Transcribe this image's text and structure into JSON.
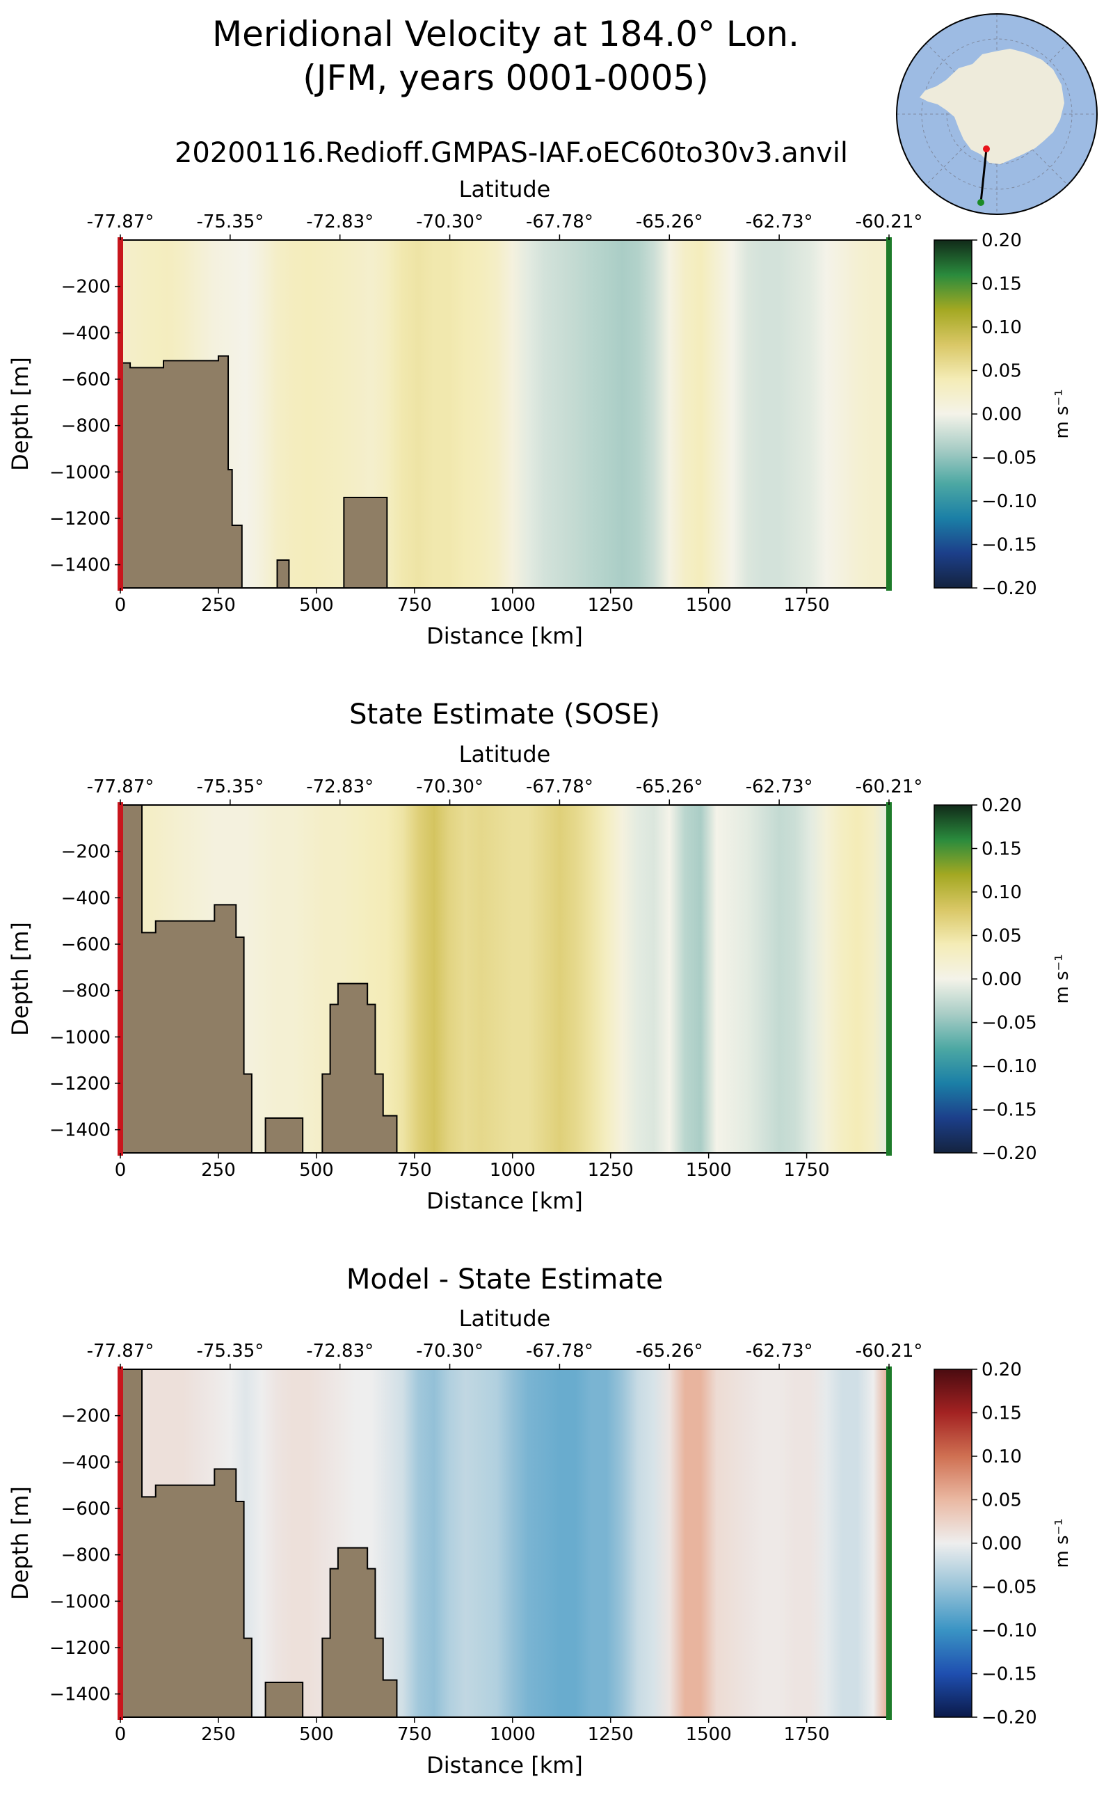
{
  "figure": {
    "title_line1": "Meridional Velocity at 184.0° Lon.",
    "title_line2": "(JFM, years 0001-0005)",
    "run_name": "20200116.Redioff.GMPAS-IAF.oEC60to30v3.anvil"
  },
  "inset_map": {
    "description_icon": "antarctica-polar-map-icon",
    "colors": {
      "ocean": "#9DBBE3",
      "land": "#EEEBDB",
      "section_line": "#000000",
      "start_dot": "#E8141B",
      "end_dot": "#1B8A26"
    }
  },
  "colors": {
    "bathymetry": "#8F7E65",
    "start_marker": "#C8161D",
    "end_marker": "#1E7B2A",
    "velocity_cmap": [
      "#14233f",
      "#1c3f8a",
      "#1b7fa6",
      "#4da8a3",
      "#a9cdc6",
      "#f4f3e9",
      "#f4ecb6",
      "#d9c766",
      "#a3a822",
      "#2a8b3d",
      "#112a19"
    ],
    "diff_cmap": [
      "#0b1a4a",
      "#1f4fb0",
      "#3a94c4",
      "#98c3d8",
      "#eeeeee",
      "#eab8a2",
      "#cf7052",
      "#a32222",
      "#4a0b10"
    ]
  },
  "chart_data": [
    {
      "type": "heatmap",
      "name": "model",
      "title": "",
      "top_axis_label": "Latitude",
      "xlabel": "Distance [km]",
      "ylabel": "Depth [m]",
      "xlim": [
        0,
        1960
      ],
      "ylim": [
        -1500,
        0
      ],
      "x_ticks": [
        0,
        250,
        500,
        750,
        1000,
        1250,
        1500,
        1750
      ],
      "x_tick_labels": [
        "0",
        "250",
        "500",
        "750",
        "1000",
        "1250",
        "1500",
        "1750"
      ],
      "y_ticks": [
        -200,
        -400,
        -600,
        -800,
        -1000,
        -1200,
        -1400
      ],
      "y_tick_labels": [
        "−200",
        "−400",
        "−600",
        "−800",
        "−1000",
        "−1200",
        "−1400"
      ],
      "lat_tick_positions_km": [
        0,
        280,
        560,
        840,
        1120,
        1400,
        1680,
        1960
      ],
      "lat_tick_labels": [
        "-77.87°",
        "-75.35°",
        "-72.83°",
        "-70.30°",
        "-67.78°",
        "-65.26°",
        "-62.73°",
        "-60.21°"
      ],
      "colorbar": {
        "label": "m s⁻¹",
        "vmin": -0.2,
        "vmax": 0.2,
        "ticks": [
          0.2,
          0.15,
          0.1,
          0.05,
          0.0,
          -0.05,
          -0.1,
          -0.15,
          -0.2
        ],
        "tick_labels": [
          "0.20",
          "0.15",
          "0.10",
          "0.05",
          "0.00",
          "−0.05",
          "−0.10",
          "−0.15",
          "−0.20"
        ]
      },
      "bathymetry": [
        [
          0,
          -530
        ],
        [
          25,
          -530
        ],
        [
          25,
          -550
        ],
        [
          110,
          -550
        ],
        [
          110,
          -520
        ],
        [
          250,
          -520
        ],
        [
          250,
          -500
        ],
        [
          275,
          -500
        ],
        [
          275,
          -990
        ],
        [
          285,
          -990
        ],
        [
          285,
          -1230
        ],
        [
          310,
          -1230
        ],
        [
          310,
          -1500
        ],
        [
          400,
          -1500
        ],
        [
          400,
          -1380
        ],
        [
          430,
          -1380
        ],
        [
          430,
          -1500
        ],
        [
          570,
          -1500
        ],
        [
          570,
          -1110
        ],
        [
          680,
          -1110
        ],
        [
          680,
          -1500
        ]
      ],
      "field_profile_km": [
        0,
        40,
        80,
        120,
        160,
        200,
        240,
        280,
        320,
        360,
        400,
        440,
        480,
        520,
        560,
        600,
        640,
        680,
        720,
        760,
        800,
        840,
        880,
        920,
        960,
        1000,
        1040,
        1080,
        1120,
        1160,
        1200,
        1240,
        1280,
        1320,
        1360,
        1400,
        1440,
        1480,
        1520,
        1560,
        1600,
        1640,
        1680,
        1720,
        1760,
        1800,
        1840,
        1880,
        1920,
        1960
      ],
      "field_profile_ms": [
        0.01,
        0.012,
        0.014,
        0.015,
        0.012,
        0.008,
        0.004,
        0.002,
        0.0,
        0.005,
        0.012,
        0.015,
        0.016,
        0.015,
        0.014,
        0.012,
        0.01,
        0.014,
        0.02,
        0.022,
        0.02,
        0.02,
        0.018,
        0.016,
        0.012,
        0.004,
        -0.004,
        -0.008,
        -0.01,
        -0.012,
        -0.014,
        -0.016,
        -0.018,
        -0.016,
        -0.01,
        0.002,
        0.012,
        0.016,
        0.008,
        0.0,
        -0.006,
        -0.008,
        -0.008,
        -0.006,
        -0.004,
        0.0,
        0.004,
        0.008,
        0.01,
        0.01
      ]
    },
    {
      "type": "heatmap",
      "name": "sose",
      "title": "State Estimate (SOSE)",
      "top_axis_label": "Latitude",
      "xlabel": "Distance [km]",
      "ylabel": "Depth [m]",
      "xlim": [
        0,
        1960
      ],
      "ylim": [
        -1500,
        0
      ],
      "x_ticks": [
        0,
        250,
        500,
        750,
        1000,
        1250,
        1500,
        1750
      ],
      "x_tick_labels": [
        "0",
        "250",
        "500",
        "750",
        "1000",
        "1250",
        "1500",
        "1750"
      ],
      "y_ticks": [
        -200,
        -400,
        -600,
        -800,
        -1000,
        -1200,
        -1400
      ],
      "y_tick_labels": [
        "−200",
        "−400",
        "−600",
        "−800",
        "−1000",
        "−1200",
        "−1400"
      ],
      "lat_tick_positions_km": [
        0,
        280,
        560,
        840,
        1120,
        1400,
        1680,
        1960
      ],
      "lat_tick_labels": [
        "-77.87°",
        "-75.35°",
        "-72.83°",
        "-70.30°",
        "-67.78°",
        "-65.26°",
        "-62.73°",
        "-60.21°"
      ],
      "colorbar": {
        "label": "m s⁻¹",
        "vmin": -0.2,
        "vmax": 0.2,
        "ticks": [
          0.2,
          0.15,
          0.1,
          0.05,
          0.0,
          -0.05,
          -0.1,
          -0.15,
          -0.2
        ],
        "tick_labels": [
          "0.20",
          "0.15",
          "0.10",
          "0.05",
          "0.00",
          "−0.05",
          "−0.10",
          "−0.15",
          "−0.20"
        ]
      },
      "bathymetry": [
        [
          0,
          0
        ],
        [
          55,
          0
        ],
        [
          55,
          -550
        ],
        [
          90,
          -550
        ],
        [
          90,
          -500
        ],
        [
          240,
          -500
        ],
        [
          240,
          -430
        ],
        [
          295,
          -430
        ],
        [
          295,
          -570
        ],
        [
          315,
          -570
        ],
        [
          315,
          -1160
        ],
        [
          335,
          -1160
        ],
        [
          335,
          -1500
        ],
        [
          370,
          -1500
        ],
        [
          370,
          -1350
        ],
        [
          465,
          -1350
        ],
        [
          465,
          -1500
        ],
        [
          515,
          -1500
        ],
        [
          515,
          -1160
        ],
        [
          535,
          -1160
        ],
        [
          535,
          -860
        ],
        [
          555,
          -860
        ],
        [
          555,
          -770
        ],
        [
          630,
          -770
        ],
        [
          630,
          -860
        ],
        [
          650,
          -860
        ],
        [
          650,
          -1160
        ],
        [
          670,
          -1160
        ],
        [
          670,
          -1340
        ],
        [
          705,
          -1340
        ],
        [
          705,
          -1500
        ]
      ],
      "field_profile_km": [
        0,
        40,
        80,
        120,
        160,
        200,
        240,
        280,
        320,
        360,
        400,
        440,
        480,
        520,
        560,
        600,
        640,
        680,
        720,
        760,
        800,
        840,
        880,
        920,
        960,
        1000,
        1040,
        1080,
        1120,
        1160,
        1200,
        1240,
        1280,
        1320,
        1360,
        1400,
        1440,
        1480,
        1520,
        1560,
        1600,
        1640,
        1680,
        1720,
        1760,
        1800,
        1840,
        1880,
        1920,
        1960
      ],
      "field_profile_ms": [
        0.01,
        0.012,
        0.012,
        0.01,
        0.008,
        0.006,
        0.004,
        0.004,
        0.004,
        0.006,
        0.008,
        0.008,
        0.01,
        0.012,
        0.012,
        0.014,
        0.016,
        0.018,
        0.022,
        0.032,
        0.038,
        0.03,
        0.026,
        0.028,
        0.026,
        0.024,
        0.024,
        0.028,
        0.032,
        0.028,
        0.022,
        0.014,
        0.004,
        -0.004,
        -0.006,
        0.0,
        -0.014,
        -0.018,
        0.0,
        -0.002,
        -0.004,
        -0.008,
        -0.012,
        -0.01,
        -0.004,
        0.006,
        0.014,
        0.018,
        0.012,
        -0.004
      ]
    },
    {
      "type": "heatmap",
      "name": "difference",
      "title": "Model - State Estimate",
      "top_axis_label": "Latitude",
      "xlabel": "Distance [km]",
      "ylabel": "Depth [m]",
      "xlim": [
        0,
        1960
      ],
      "ylim": [
        -1500,
        0
      ],
      "x_ticks": [
        0,
        250,
        500,
        750,
        1000,
        1250,
        1500,
        1750
      ],
      "x_tick_labels": [
        "0",
        "250",
        "500",
        "750",
        "1000",
        "1250",
        "1500",
        "1750"
      ],
      "y_ticks": [
        -200,
        -400,
        -600,
        -800,
        -1000,
        -1200,
        -1400
      ],
      "y_tick_labels": [
        "−200",
        "−400",
        "−600",
        "−800",
        "−1000",
        "−1200",
        "−1400"
      ],
      "lat_tick_positions_km": [
        0,
        280,
        560,
        840,
        1120,
        1400,
        1680,
        1960
      ],
      "lat_tick_labels": [
        "-77.87°",
        "-75.35°",
        "-72.83°",
        "-70.30°",
        "-67.78°",
        "-65.26°",
        "-62.73°",
        "-60.21°"
      ],
      "colorbar": {
        "label": "m s⁻¹",
        "vmin": -0.2,
        "vmax": 0.2,
        "ticks": [
          0.2,
          0.15,
          0.1,
          0.05,
          0.0,
          -0.05,
          -0.1,
          -0.15,
          -0.2
        ],
        "tick_labels": [
          "0.20",
          "0.15",
          "0.10",
          "0.05",
          "0.00",
          "−0.05",
          "−0.10",
          "−0.15",
          "−0.20"
        ]
      },
      "bathymetry": [
        [
          0,
          0
        ],
        [
          55,
          0
        ],
        [
          55,
          -550
        ],
        [
          90,
          -550
        ],
        [
          90,
          -500
        ],
        [
          240,
          -500
        ],
        [
          240,
          -430
        ],
        [
          295,
          -430
        ],
        [
          295,
          -570
        ],
        [
          315,
          -570
        ],
        [
          315,
          -1160
        ],
        [
          335,
          -1160
        ],
        [
          335,
          -1500
        ],
        [
          370,
          -1500
        ],
        [
          370,
          -1350
        ],
        [
          465,
          -1350
        ],
        [
          465,
          -1500
        ],
        [
          515,
          -1500
        ],
        [
          515,
          -1160
        ],
        [
          535,
          -1160
        ],
        [
          535,
          -860
        ],
        [
          555,
          -860
        ],
        [
          555,
          -770
        ],
        [
          630,
          -770
        ],
        [
          630,
          -860
        ],
        [
          650,
          -860
        ],
        [
          650,
          -1160
        ],
        [
          670,
          -1160
        ],
        [
          670,
          -1340
        ],
        [
          705,
          -1340
        ],
        [
          705,
          -1500
        ]
      ],
      "field_profile_km": [
        0,
        40,
        80,
        120,
        160,
        200,
        240,
        280,
        320,
        360,
        400,
        440,
        480,
        520,
        560,
        600,
        640,
        680,
        720,
        760,
        800,
        840,
        880,
        920,
        960,
        1000,
        1040,
        1080,
        1120,
        1160,
        1200,
        1240,
        1280,
        1320,
        1360,
        1400,
        1440,
        1480,
        1520,
        1560,
        1600,
        1640,
        1680,
        1720,
        1760,
        1800,
        1840,
        1880,
        1920,
        1960
      ],
      "field_profile_ms": [
        0.004,
        0.004,
        0.006,
        0.006,
        0.006,
        0.004,
        0.002,
        0.0,
        -0.004,
        0.0,
        0.004,
        0.006,
        0.006,
        0.004,
        0.002,
        0.0,
        0.0,
        -0.004,
        -0.008,
        -0.02,
        -0.024,
        -0.016,
        -0.012,
        -0.014,
        -0.016,
        -0.024,
        -0.03,
        -0.032,
        -0.034,
        -0.034,
        -0.03,
        -0.03,
        -0.022,
        -0.01,
        -0.006,
        0.004,
        0.024,
        0.024,
        0.008,
        0.006,
        0.004,
        0.002,
        0.002,
        0.004,
        0.004,
        -0.002,
        -0.008,
        -0.008,
        0.0,
        0.028
      ]
    }
  ]
}
